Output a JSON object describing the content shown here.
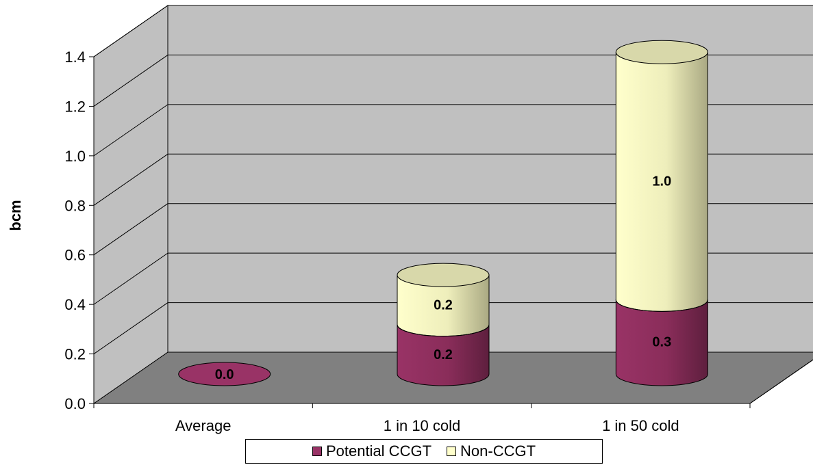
{
  "chart_data": {
    "type": "bar",
    "style": "3d-cylinder-stacked",
    "categories": [
      "Average",
      "1 in 10 cold",
      "1 in 50 cold"
    ],
    "series": [
      {
        "name": "Potential CCGT",
        "values": [
          0.0,
          0.2,
          0.3
        ],
        "labels": [
          "0.0",
          "0.2",
          "0.3"
        ],
        "color": "#993366"
      },
      {
        "name": "Non-CCGT",
        "values": [
          0.0,
          0.2,
          1.0
        ],
        "labels": [
          "",
          "0.2",
          "1.0"
        ],
        "color": "#FFFFCC"
      }
    ],
    "xlabel": "",
    "ylabel": "bcm",
    "ylim": [
      0.0,
      1.4
    ],
    "yticks": [
      "0.0",
      "0.2",
      "0.4",
      "0.6",
      "0.8",
      "1.0",
      "1.2",
      "1.4"
    ],
    "grid": true,
    "legend": "bottom",
    "colors": {
      "wall": "#C0C0C0",
      "floor": "#808080",
      "grid": "#000000"
    }
  }
}
